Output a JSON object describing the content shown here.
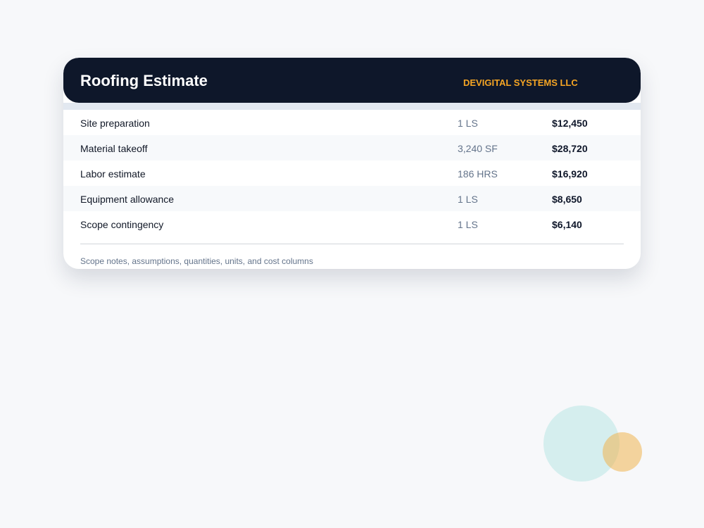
{
  "header": {
    "title": "Roofing Estimate",
    "company": "DEVIGITAL SYSTEMS LLC"
  },
  "table": {
    "rows": [
      [
        "Site preparation",
        "1 LS",
        "$12,450"
      ],
      [
        "Material takeoff",
        "3,240 SF",
        "$28,720"
      ],
      [
        "Labor estimate",
        "186 HRS",
        "$16,920"
      ],
      [
        "Equipment allowance",
        "1 LS",
        "$8,650"
      ],
      [
        "Scope contingency",
        "1 LS",
        "$6,140"
      ]
    ]
  },
  "footer": {
    "note": "Scope notes, assumptions, quantities, units, and cost columns"
  }
}
